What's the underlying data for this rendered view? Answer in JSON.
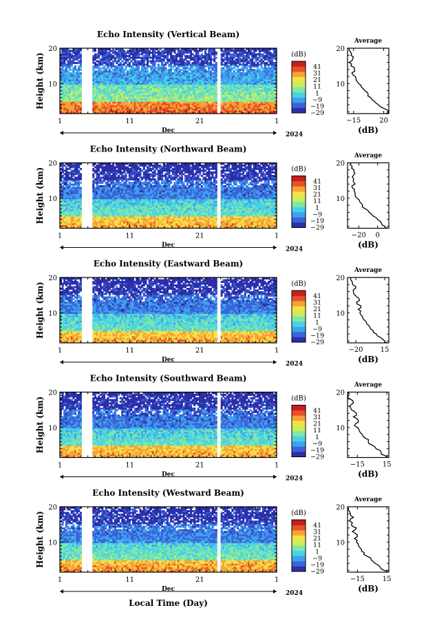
{
  "figure": {
    "xlabel": "Local Time (Day)",
    "month_label": "Dec",
    "year_label": "2024",
    "x_ticks": [
      "1",
      "11",
      "21",
      "1"
    ],
    "colorbar_unit": "(dB)",
    "colorbar_ticks": [
      "41",
      "31",
      "21",
      "11",
      "1",
      "−9",
      "−19",
      "−29"
    ],
    "colors": {
      "scale": [
        "#2c2fa8",
        "#3a64d8",
        "#3fa0ee",
        "#48d2e6",
        "#7fe6a8",
        "#c9ee5a",
        "#f6e04a",
        "#f5a236",
        "#e8512a",
        "#c81e1e"
      ]
    }
  },
  "chart_data": [
    {
      "type": "heatmap",
      "title": "Echo Intensity (Vertical Beam)",
      "ylabel": "Height (km)",
      "ylim": [
        1.5,
        20
      ],
      "y_ticks": [
        "20",
        "10"
      ],
      "x_range_days": [
        1,
        32
      ],
      "data_gaps_days": [
        [
          4.1,
          5.6
        ],
        [
          9.8,
          9.9
        ],
        [
          23.5,
          24.0
        ]
      ],
      "colorbar_range_db": [
        -29,
        41
      ],
      "strong_echo_levels_db": {
        "below_5km": 25,
        "5_to_10km": 5,
        "10_to_15km": -10,
        "above_15km": -22
      },
      "profile": {
        "title": "Average",
        "xlabel": "(dB)",
        "x_ticks": [
          "−15",
          "20"
        ],
        "y_ticks": [
          "20",
          "10"
        ],
        "xlim": [
          -22,
          26
        ],
        "height_km": [
          1.5,
          2,
          3,
          4,
          5,
          6,
          7,
          8,
          9,
          10,
          11,
          12,
          13,
          14,
          15,
          16,
          17,
          18,
          19,
          20
        ],
        "value_db": [
          22,
          26,
          20,
          14,
          9,
          5,
          2,
          -2,
          -6,
          -9,
          -12,
          -13,
          -17,
          -14,
          -18,
          -20,
          -16,
          -18,
          -19,
          -20
        ]
      }
    },
    {
      "type": "heatmap",
      "title": "Echo Intensity (Northward Beam)",
      "ylabel": "Height (km)",
      "ylim": [
        1.5,
        20
      ],
      "y_ticks": [
        "20",
        "10"
      ],
      "x_range_days": [
        1,
        32
      ],
      "data_gaps_days": [
        [
          4.1,
          5.6
        ],
        [
          9.8,
          9.9
        ],
        [
          23.5,
          24.0
        ]
      ],
      "colorbar_range_db": [
        -29,
        41
      ],
      "strong_echo_levels_db": {
        "below_5km": 18,
        "5_to_10km": 0,
        "10_to_15km": -15,
        "above_15km": -25
      },
      "profile": {
        "title": "Average",
        "xlabel": "(dB)",
        "x_ticks": [
          "−20",
          "0"
        ],
        "y_ticks": [
          "20",
          "10"
        ],
        "xlim": [
          -32,
          12
        ],
        "height_km": [
          1.5,
          2,
          3,
          4,
          5,
          6,
          7,
          8,
          9,
          10,
          11,
          12,
          13,
          14,
          15,
          16,
          17,
          18,
          19,
          20
        ],
        "value_db": [
          10,
          8,
          4,
          0,
          -5,
          -9,
          -13,
          -16,
          -19,
          -22,
          -24,
          -25,
          -27,
          -24,
          -26,
          -27,
          -24,
          -25,
          -27,
          -28
        ]
      }
    },
    {
      "type": "heatmap",
      "title": "Echo Intensity (Eastward Beam)",
      "ylabel": "Height (km)",
      "ylim": [
        1.5,
        20
      ],
      "y_ticks": [
        "20",
        "10"
      ],
      "x_range_days": [
        1,
        32
      ],
      "data_gaps_days": [
        [
          4.1,
          5.6
        ],
        [
          9.8,
          9.9
        ],
        [
          23.5,
          24.0
        ]
      ],
      "colorbar_range_db": [
        -29,
        41
      ],
      "strong_echo_levels_db": {
        "below_5km": 18,
        "5_to_10km": 0,
        "10_to_15km": -15,
        "above_15km": -25
      },
      "profile": {
        "title": "Average",
        "xlabel": "(dB)",
        "x_ticks": [
          "−20",
          "15"
        ],
        "y_ticks": [
          "20",
          "10"
        ],
        "xlim": [
          -30,
          20
        ],
        "height_km": [
          1.5,
          2,
          3,
          4,
          5,
          6,
          7,
          8,
          9,
          10,
          11,
          12,
          13,
          14,
          15,
          16,
          17,
          18,
          19,
          20
        ],
        "value_db": [
          18,
          15,
          10,
          5,
          1,
          -3,
          -7,
          -10,
          -12,
          -15,
          -17,
          -14,
          -19,
          -16,
          -21,
          -23,
          -20,
          -24,
          -25,
          -26
        ]
      }
    },
    {
      "type": "heatmap",
      "title": "Echo Intensity (Southward Beam)",
      "ylabel": "Height (km)",
      "ylim": [
        1.5,
        20
      ],
      "y_ticks": [
        "20",
        "10"
      ],
      "x_range_days": [
        1,
        32
      ],
      "data_gaps_days": [
        [
          4.1,
          5.6
        ],
        [
          9.8,
          9.9
        ],
        [
          23.5,
          24.0
        ]
      ],
      "colorbar_range_db": [
        -29,
        41
      ],
      "strong_echo_levels_db": {
        "below_5km": 18,
        "5_to_10km": 0,
        "10_to_15km": -15,
        "above_15km": -25
      },
      "profile": {
        "title": "Average",
        "xlabel": "(dB)",
        "x_ticks": [
          "−15",
          "15"
        ],
        "y_ticks": [
          "20",
          "10"
        ],
        "xlim": [
          -25,
          17
        ],
        "height_km": [
          1.5,
          2,
          3,
          4,
          5,
          6,
          7,
          8,
          9,
          10,
          11,
          12,
          13,
          14,
          15,
          16,
          17,
          18,
          19,
          20
        ],
        "value_db": [
          15,
          13,
          9,
          4,
          0,
          -4,
          -7,
          -10,
          -13,
          -15,
          -17,
          -14,
          -19,
          -16,
          -21,
          -23,
          -19,
          -22,
          -24,
          -25
        ]
      }
    },
    {
      "type": "heatmap",
      "title": "Echo Intensity (Westward Beam)",
      "ylabel": "Height (km)",
      "ylim": [
        1.5,
        20
      ],
      "y_ticks": [
        "20",
        "10"
      ],
      "x_range_days": [
        1,
        32
      ],
      "data_gaps_days": [
        [
          4.1,
          5.6
        ],
        [
          9.8,
          9.9
        ],
        [
          23.5,
          24.0
        ]
      ],
      "colorbar_range_db": [
        -29,
        41
      ],
      "strong_echo_levels_db": {
        "below_5km": 20,
        "5_to_10km": 2,
        "10_to_15km": -14,
        "above_15km": -24
      },
      "profile": {
        "title": "Average",
        "xlabel": "(dB)",
        "x_ticks": [
          "−15",
          "15"
        ],
        "y_ticks": [
          "20",
          "10"
        ],
        "xlim": [
          -25,
          17
        ],
        "height_km": [
          1.5,
          2,
          3,
          4,
          5,
          6,
          7,
          8,
          9,
          10,
          11,
          12,
          13,
          14,
          15,
          16,
          17,
          18,
          19,
          20
        ],
        "value_db": [
          15,
          12,
          8,
          3,
          -1,
          -5,
          -8,
          -11,
          -14,
          -16,
          -18,
          -15,
          -20,
          -16,
          -21,
          -23,
          -19,
          -22,
          -24,
          -25
        ]
      }
    }
  ]
}
